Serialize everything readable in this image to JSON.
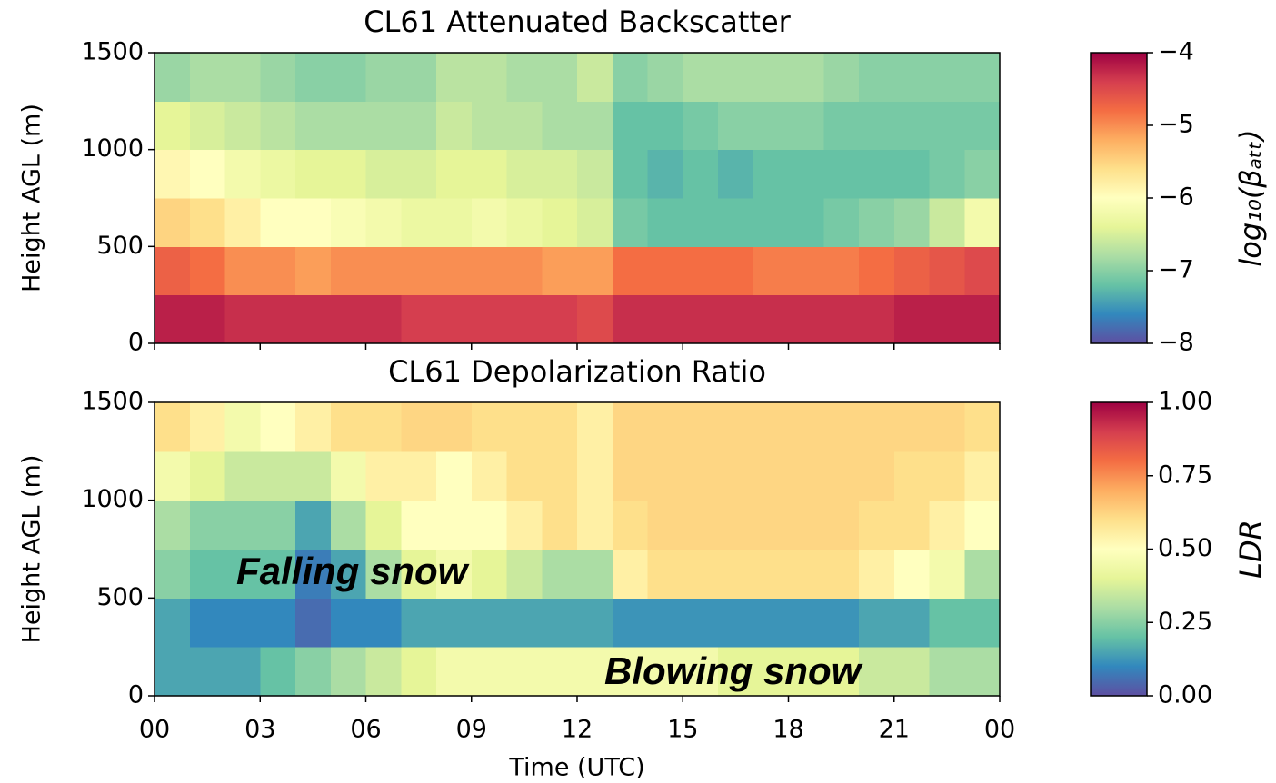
{
  "chart_data": [
    {
      "type": "heatmap",
      "title": "CL61 Attenuated Backscatter",
      "y_label": "Height AGL (m)",
      "xlim": [
        0,
        24
      ],
      "ylim": [
        0,
        1500
      ],
      "xticks": [
        {
          "value": 0,
          "label": "00"
        },
        {
          "value": 3,
          "label": "03"
        },
        {
          "value": 6,
          "label": "06"
        },
        {
          "value": 9,
          "label": "09"
        },
        12,
        15,
        18,
        21,
        {
          "value": 24,
          "label": "00"
        }
      ],
      "yticks": [
        0,
        500,
        1000,
        1500
      ],
      "x_edges": [
        0,
        1,
        2,
        3,
        4,
        5,
        6,
        7,
        8,
        9,
        10,
        11,
        12,
        13,
        14,
        15,
        16,
        17,
        18,
        19,
        20,
        21,
        22,
        23,
        24
      ],
      "y_edges": [
        0,
        250,
        500,
        750,
        1000,
        1250,
        1500
      ],
      "z": [
        [
          -4.2,
          -4.2,
          -4.3,
          -4.3,
          -4.3,
          -4.3,
          -4.3,
          -4.4,
          -4.4,
          -4.4,
          -4.4,
          -4.4,
          -4.5,
          -4.3,
          -4.3,
          -4.3,
          -4.3,
          -4.3,
          -4.3,
          -4.3,
          -4.3,
          -4.2,
          -4.2,
          -4.2
        ],
        [
          -4.7,
          -4.8,
          -5.0,
          -5.0,
          -5.1,
          -5.0,
          -5.0,
          -5.0,
          -5.0,
          -5.0,
          -5.0,
          -5.1,
          -5.1,
          -4.8,
          -4.8,
          -4.8,
          -4.8,
          -4.9,
          -4.9,
          -4.9,
          -4.8,
          -4.7,
          -4.6,
          -4.5
        ],
        [
          -5.5,
          -5.6,
          -5.8,
          -6.0,
          -6.0,
          -6.1,
          -6.2,
          -6.3,
          -6.3,
          -6.2,
          -6.3,
          -6.4,
          -6.5,
          -7.1,
          -7.2,
          -7.2,
          -7.2,
          -7.2,
          -7.2,
          -7.1,
          -7.0,
          -6.9,
          -6.6,
          -6.2
        ],
        [
          -5.9,
          -6.0,
          -6.2,
          -6.3,
          -6.4,
          -6.4,
          -6.5,
          -6.5,
          -6.4,
          -6.4,
          -6.5,
          -6.5,
          -6.6,
          -7.2,
          -7.3,
          -7.2,
          -7.3,
          -7.2,
          -7.2,
          -7.2,
          -7.2,
          -7.2,
          -7.1,
          -7.0
        ],
        [
          -6.4,
          -6.5,
          -6.6,
          -6.7,
          -6.8,
          -6.8,
          -6.8,
          -6.8,
          -6.6,
          -6.7,
          -6.7,
          -6.8,
          -6.8,
          -7.2,
          -7.2,
          -7.1,
          -7.0,
          -7.0,
          -7.0,
          -7.1,
          -7.1,
          -7.1,
          -7.1,
          -7.1
        ],
        [
          -6.9,
          -6.8,
          -6.8,
          -6.9,
          -7.0,
          -7.0,
          -6.9,
          -6.9,
          -6.7,
          -6.7,
          -6.8,
          -6.8,
          -6.6,
          -7.0,
          -6.9,
          -6.8,
          -6.8,
          -6.8,
          -6.8,
          -6.9,
          -7.0,
          -7.0,
          -7.0,
          -7.0
        ]
      ],
      "colormap": [
        "#5e4fa2",
        "#3288bd",
        "#66c2a5",
        "#abdda4",
        "#e6f598",
        "#ffffbf",
        "#fee08b",
        "#fdae61",
        "#f46d43",
        "#d53e4f",
        "#9e0142"
      ],
      "colorbar": {
        "label": "log₁₀(βₐₜₜ)",
        "lim": [
          -8,
          -4
        ],
        "ticks": [
          {
            "value": -4,
            "label": "−4"
          },
          {
            "value": -5,
            "label": "−5"
          },
          {
            "value": -6,
            "label": "−6"
          },
          {
            "value": -7,
            "label": "−7"
          },
          {
            "value": -8,
            "label": "−8"
          }
        ]
      }
    },
    {
      "type": "heatmap",
      "title": "CL61 Depolarization Ratio",
      "y_label": "Height AGL (m)",
      "x_label": "Time (UTC)",
      "xlim": [
        0,
        24
      ],
      "ylim": [
        0,
        1500
      ],
      "xticks": [
        {
          "value": 0,
          "label": "00"
        },
        {
          "value": 3,
          "label": "03"
        },
        {
          "value": 6,
          "label": "06"
        },
        {
          "value": 9,
          "label": "09"
        },
        12,
        15,
        18,
        21,
        {
          "value": 24,
          "label": "00"
        }
      ],
      "yticks": [
        0,
        500,
        1000,
        1500
      ],
      "x_edges": [
        0,
        1,
        2,
        3,
        4,
        5,
        6,
        7,
        8,
        9,
        10,
        11,
        12,
        13,
        14,
        15,
        16,
        17,
        18,
        19,
        20,
        21,
        22,
        23,
        24
      ],
      "y_edges": [
        0,
        250,
        500,
        750,
        1000,
        1250,
        1500
      ],
      "z": [
        [
          0.15,
          0.15,
          0.15,
          0.2,
          0.25,
          0.3,
          0.35,
          0.4,
          0.45,
          0.45,
          0.45,
          0.45,
          0.45,
          0.45,
          0.45,
          0.45,
          0.4,
          0.4,
          0.4,
          0.4,
          0.35,
          0.35,
          0.3,
          0.3
        ],
        [
          0.15,
          0.1,
          0.1,
          0.1,
          0.05,
          0.1,
          0.1,
          0.15,
          0.15,
          0.15,
          0.15,
          0.15,
          0.15,
          0.12,
          0.12,
          0.12,
          0.12,
          0.12,
          0.12,
          0.12,
          0.15,
          0.15,
          0.2,
          0.2
        ],
        [
          0.25,
          0.2,
          0.2,
          0.2,
          0.08,
          0.15,
          0.3,
          0.4,
          0.45,
          0.4,
          0.35,
          0.3,
          0.3,
          0.55,
          0.6,
          0.6,
          0.6,
          0.6,
          0.6,
          0.6,
          0.55,
          0.5,
          0.45,
          0.3
        ],
        [
          0.3,
          0.25,
          0.25,
          0.25,
          0.15,
          0.3,
          0.4,
          0.5,
          0.5,
          0.5,
          0.55,
          0.6,
          0.55,
          0.6,
          0.62,
          0.62,
          0.62,
          0.62,
          0.62,
          0.62,
          0.6,
          0.6,
          0.55,
          0.5
        ],
        [
          0.45,
          0.4,
          0.35,
          0.35,
          0.35,
          0.45,
          0.55,
          0.55,
          0.5,
          0.55,
          0.6,
          0.6,
          0.55,
          0.62,
          0.62,
          0.62,
          0.62,
          0.62,
          0.62,
          0.62,
          0.62,
          0.6,
          0.6,
          0.55
        ],
        [
          0.6,
          0.55,
          0.45,
          0.5,
          0.55,
          0.6,
          0.6,
          0.62,
          0.62,
          0.6,
          0.6,
          0.6,
          0.55,
          0.62,
          0.62,
          0.62,
          0.62,
          0.62,
          0.62,
          0.62,
          0.62,
          0.62,
          0.62,
          0.6
        ]
      ],
      "colormap": [
        "#5e4fa2",
        "#3288bd",
        "#66c2a5",
        "#abdda4",
        "#e6f598",
        "#ffffbf",
        "#fee08b",
        "#fdae61",
        "#f46d43",
        "#d53e4f",
        "#9e0142"
      ],
      "colorbar": {
        "label": "LDR",
        "lim": [
          0,
          1
        ],
        "ticks": [
          {
            "value": 0,
            "label": "0.00"
          },
          {
            "value": 0.25,
            "label": "0.25"
          },
          {
            "value": 0.5,
            "label": "0.50"
          },
          {
            "value": 0.75,
            "label": "0.75"
          },
          {
            "value": 1,
            "label": "1.00"
          }
        ]
      },
      "annotations": [
        "Falling snow",
        "Blowing snow"
      ]
    }
  ]
}
